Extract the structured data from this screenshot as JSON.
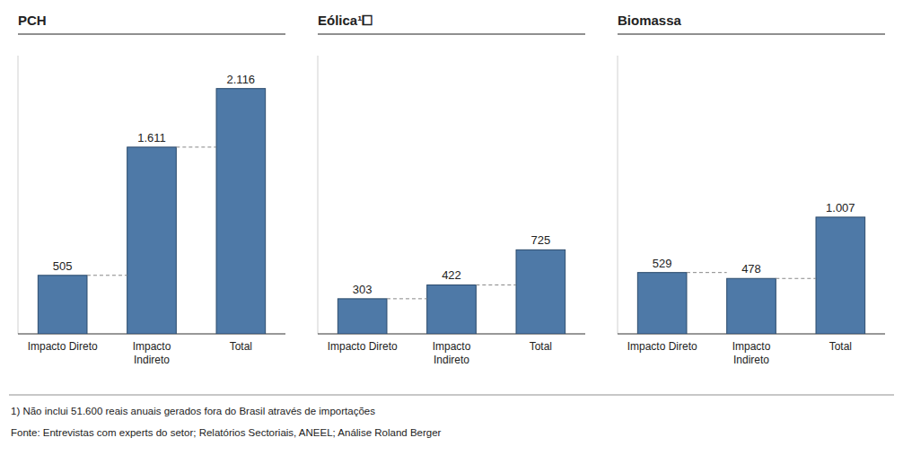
{
  "chart_data": [
    {
      "type": "bar",
      "title": "PCH",
      "categories": [
        "Impacto Direto",
        "Impacto\nIndireto",
        "Total"
      ],
      "values": [
        505,
        1611,
        2116
      ],
      "value_labels": [
        "505",
        "1.611",
        "2.116"
      ],
      "data_labels": true,
      "color": "#4e79a7",
      "ylim": [
        0,
        2400
      ],
      "tick_labels": "x",
      "annotations": [
        "1)  Não inclui 51.600 reais anuais gerados fora do Brasil  através de importações",
        "Fonte:    Entrevistas com experts do setor; Relatórios  Sectoriais,  ANEEL; Análise Roland Berger"
      ]
    },
    {
      "type": "bar",
      "title": "Eólica¹⧠",
      "categories": [
        "Impacto Direto",
        "Impacto\nIndireto",
        "Total"
      ],
      "values": [
        303,
        422,
        725
      ],
      "value_labels": [
        "303",
        "422",
        "725"
      ],
      "data_labels": true,
      "color": "#4e79a7",
      "ylim": [
        0,
        2400
      ],
      "tick_labels": "x"
    },
    {
      "type": "bar",
      "title": "Biomassa",
      "categories": [
        "Impacto Direto",
        "Impacto\nIndireto",
        "Total"
      ],
      "values": [
        529,
        478,
        1007
      ],
      "value_labels": [
        "529",
        "478",
        "1.007"
      ],
      "data_labels": true,
      "color": "#4e79a7",
      "ylim": [
        0,
        2400
      ],
      "tick_labels": "x"
    }
  ]
}
